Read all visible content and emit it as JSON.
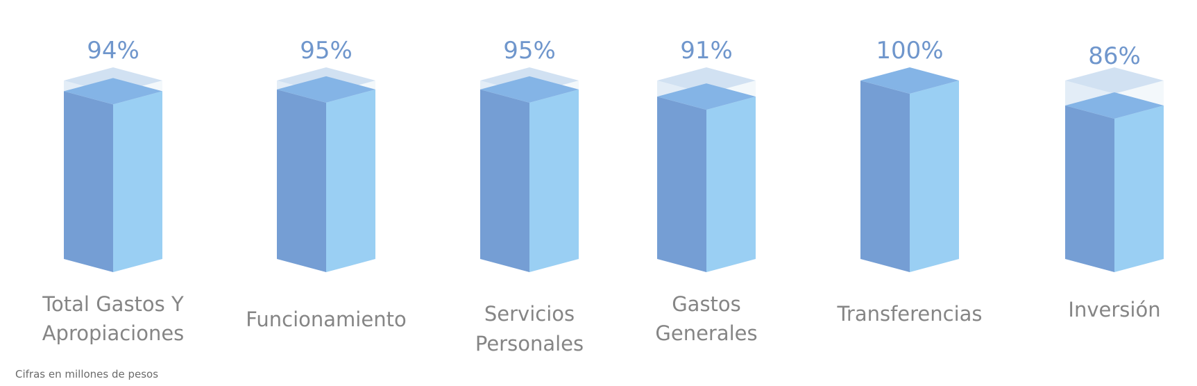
{
  "chart_data": {
    "type": "bar",
    "style": "3d-filled-column",
    "ylim": [
      0,
      100
    ],
    "unit": "%",
    "categories": [
      [
        "Total Gastos Y",
        "Apropiaciones"
      ],
      [
        "Funcionamiento"
      ],
      [
        "Servicios",
        "Personales"
      ],
      [
        "Gastos",
        "Generales"
      ],
      [
        "Transferencias"
      ],
      [
        "Inversión"
      ]
    ],
    "values": [
      94,
      95,
      95,
      91,
      100,
      86
    ],
    "value_labels": [
      "94%",
      "95%",
      "95%",
      "91%",
      "100%",
      "86%"
    ],
    "grid": false,
    "legend": "none"
  },
  "colors": {
    "front_left": "#759ed4",
    "front_right": "#9acff3",
    "top_face": "#84b4e6",
    "empty_left": "#e3edf7",
    "empty_right": "#f3f8fb",
    "empty_top": "#d1e1f2",
    "value_label": "#6f96cc",
    "category_label": "#858585"
  },
  "footnote": "Cifras en millones de pesos"
}
